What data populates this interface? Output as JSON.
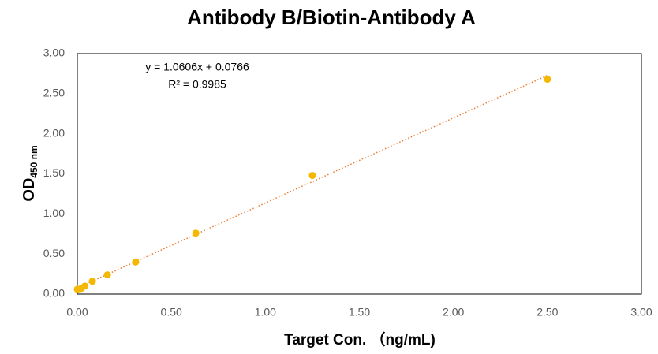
{
  "chart_data": {
    "type": "scatter",
    "title": "Antibody B/Biotin-Antibody A",
    "xlabel": "Target  Con. （ng/mL)",
    "ylabel": "OD",
    "ylabel_sub": "450 nm",
    "series": [
      {
        "name": "OD",
        "color": "#f5b800",
        "x": [
          0,
          0.02,
          0.04,
          0.08,
          0.16,
          0.31,
          0.63,
          1.25,
          2.5
        ],
        "values": [
          0.06,
          0.07,
          0.1,
          0.16,
          0.24,
          0.4,
          0.76,
          1.48,
          2.68
        ]
      }
    ],
    "trendline": {
      "equation": "y = 1.0606x + 0.0766",
      "slope": 1.0606,
      "intercept": 0.0766,
      "r2": "R² = 0.9985",
      "color": "#ed7d31",
      "xrange": [
        0,
        2.5
      ]
    },
    "xlim": [
      0,
      3
    ],
    "ylim": [
      0,
      3
    ],
    "xticks": [
      {
        "value": 0,
        "label": "0.00"
      },
      {
        "value": 0.5,
        "label": "0.50"
      },
      {
        "value": 1,
        "label": "1.00"
      },
      {
        "value": 1.5,
        "label": "1.50"
      },
      {
        "value": 2,
        "label": "2.00"
      },
      {
        "value": 2.5,
        "label": "2.50"
      },
      {
        "value": 3,
        "label": "3.00"
      }
    ],
    "yticks": [
      {
        "value": 0,
        "label": "0.00"
      },
      {
        "value": 0.5,
        "label": "0.50"
      },
      {
        "value": 1,
        "label": "1.00"
      },
      {
        "value": 1.5,
        "label": "1.50"
      },
      {
        "value": 2,
        "label": "2.00"
      },
      {
        "value": 2.5,
        "label": "2.50"
      },
      {
        "value": 3,
        "label": "3.00"
      }
    ],
    "grid": false
  }
}
